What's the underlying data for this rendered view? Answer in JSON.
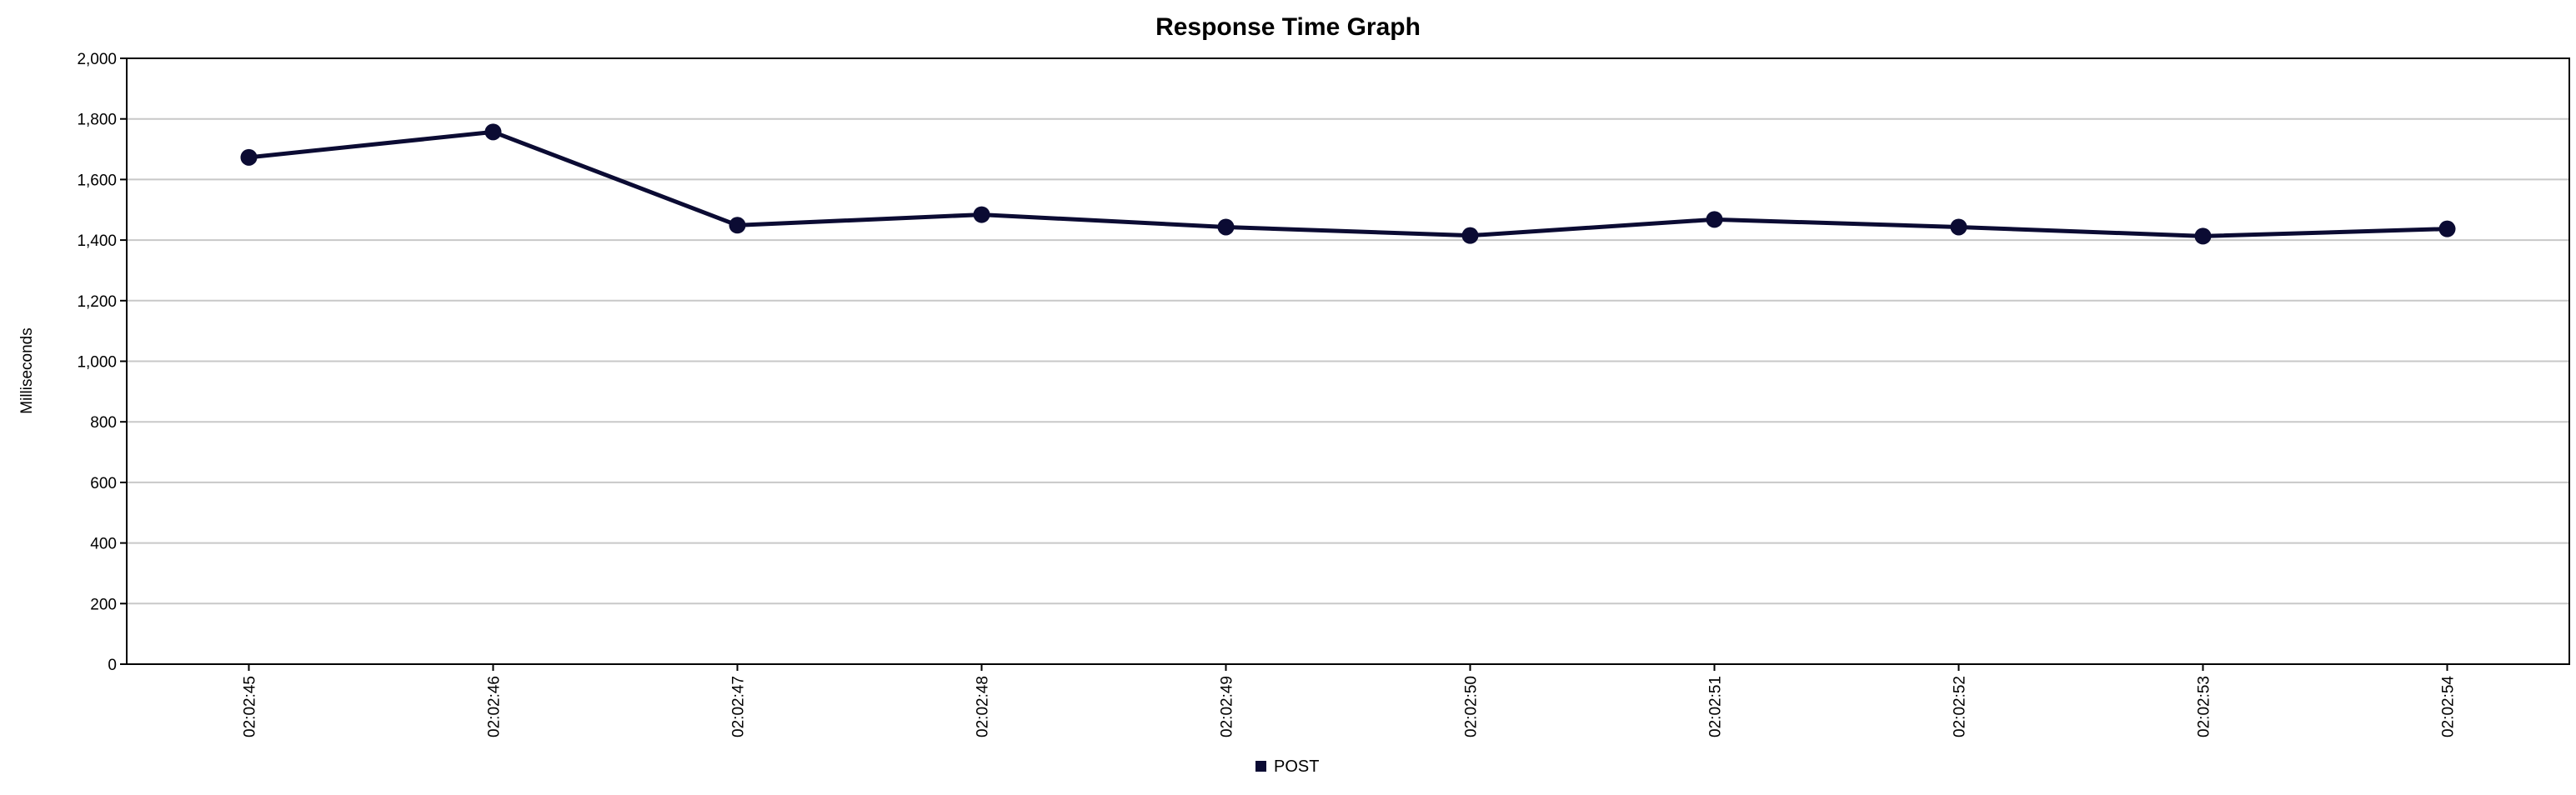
{
  "chart_data": {
    "type": "line",
    "title": "Response Time Graph",
    "xlabel": "",
    "ylabel": "Milliseconds",
    "categories": [
      "02:02:45",
      "02:02:46",
      "02:02:47",
      "02:02:48",
      "02:02:49",
      "02:02:50",
      "02:02:51",
      "02:02:52",
      "02:02:53",
      "02:02:54"
    ],
    "series": [
      {
        "name": "POST",
        "color": "#0b0b33",
        "values": [
          1673,
          1757,
          1449,
          1484,
          1443,
          1415,
          1468,
          1443,
          1413,
          1437
        ]
      }
    ],
    "ylim": [
      0,
      2000
    ],
    "yticks": [
      "0",
      "200",
      "400",
      "600",
      "800",
      "1,000",
      "1,200",
      "1,400",
      "1,600",
      "1,800",
      "2,000"
    ],
    "ytick_values": [
      0,
      200,
      400,
      600,
      800,
      1000,
      1200,
      1400,
      1600,
      1800,
      2000
    ],
    "grid": true,
    "legend_position": "bottom-center"
  }
}
